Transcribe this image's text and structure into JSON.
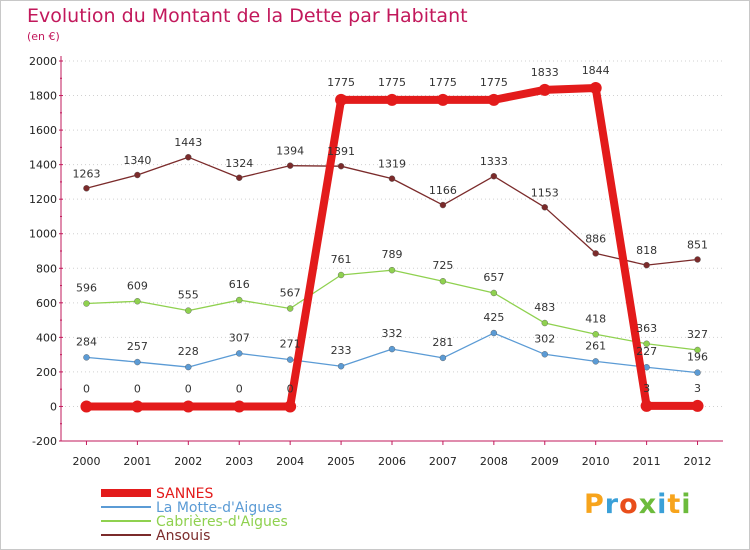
{
  "header": {
    "title": "Evolution du Montant de la Dette par Habitant",
    "unit": "(en €)"
  },
  "logo": {
    "text": "Proxiti"
  },
  "chart_data": {
    "type": "line",
    "title": "Evolution du Montant de la Dette par Habitant",
    "ylabel": "(en €)",
    "xlabel": "",
    "x": [
      "2000",
      "2001",
      "2002",
      "2003",
      "2004",
      "2005",
      "2006",
      "2007",
      "2008",
      "2009",
      "2010",
      "2011",
      "2012"
    ],
    "ylim": [
      -200,
      2000
    ],
    "yticks": [
      "-200",
      "0",
      "200",
      "400",
      "600",
      "800",
      "1000",
      "1200",
      "1400",
      "1600",
      "1800",
      "2000"
    ],
    "grid": "horizontal-dotted",
    "legend_position": "bottom-left",
    "series": [
      {
        "name": "SANNES",
        "color": "#e31b1b",
        "values": [
          0,
          0,
          0,
          0,
          0,
          1775,
          1775,
          1775,
          1775,
          1833,
          1844,
          3,
          3
        ],
        "labels": [
          "0",
          "0",
          "0",
          "0",
          "0",
          "1775",
          "1775",
          "1775",
          "1775",
          "1833",
          "1844",
          "3",
          "3"
        ]
      },
      {
        "name": "La Motte-d'Aigues",
        "color": "#5b9bd5",
        "values": [
          284,
          257,
          228,
          307,
          271,
          233,
          332,
          281,
          425,
          302,
          261,
          227,
          196
        ],
        "labels": [
          "284",
          "257",
          "228",
          "307",
          "271",
          "233",
          "332",
          "281",
          "425",
          "302",
          "261",
          "227",
          "196"
        ]
      },
      {
        "name": "Cabrières-d'Aigues",
        "color": "#8fd14f",
        "values": [
          596,
          609,
          555,
          616,
          567,
          761,
          789,
          725,
          657,
          483,
          418,
          363,
          327
        ],
        "labels": [
          "596",
          "609",
          "555",
          "616",
          "567",
          "761",
          "789",
          "725",
          "657",
          "483",
          "418",
          "363",
          "327"
        ]
      },
      {
        "name": "Ansouis",
        "color": "#7b2b2b",
        "values": [
          1263,
          1340,
          1443,
          1324,
          1394,
          1391,
          1319,
          1166,
          1333,
          1153,
          886,
          818,
          851
        ],
        "labels": [
          "1263",
          "1340",
          "1443",
          "1324",
          "1394",
          "1391",
          "1319",
          "1166",
          "1333",
          "1153",
          "886",
          "818",
          "851"
        ]
      }
    ]
  }
}
